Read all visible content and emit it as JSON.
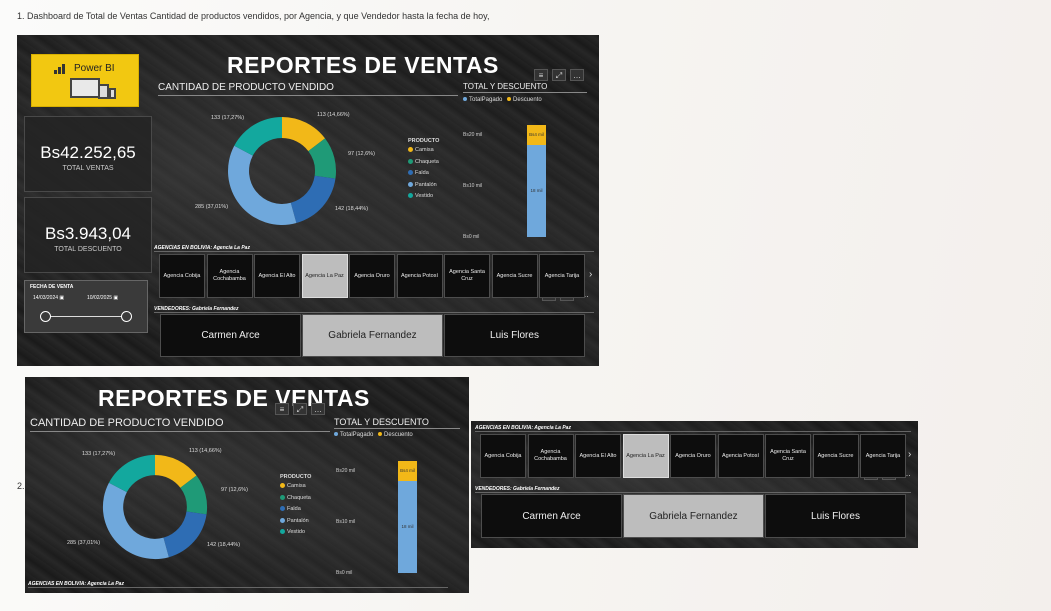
{
  "caption_1": "1. Dashboard de Total de Ventas Cantidad de productos vendidos, por Agencia, y que Vendedor hasta la fecha de hoy,",
  "caption_2": "2.",
  "logo": {
    "text": "Power BI"
  },
  "title": "REPORTES DE VENTAS",
  "kpis": {
    "total_ventas": {
      "value": "Bs42.252,65",
      "label": "TOTAL VENTAS"
    },
    "total_descuento": {
      "value": "Bs3.943,04",
      "label": "TOTAL DESCUENTO"
    }
  },
  "date_filter": {
    "title": "FECHA DE VENTA",
    "start": "14/03/2024",
    "end": "10/02/2025",
    "range": [
      0.0,
      1.0
    ]
  },
  "colors": {
    "camisa": "#f2b818",
    "chaqueta": "#1f9a77",
    "falda": "#2e6db4",
    "pantalon": "#6fa8dc",
    "vestido": "#13a89e",
    "selected_tile": "#bdbdbd"
  },
  "donut": {
    "title": "CANTIDAD DE PRODUCTO VENDIDO",
    "legend_title": "PRODUCTO",
    "labels": [
      "113 (14,66%)",
      "97 (12,6%)",
      "142 (18,44%)",
      "285 (37,01%)",
      "133 (17,27%)"
    ]
  },
  "bar": {
    "title": "TOTAL Y DESCUENTO",
    "legend": [
      "TotalPagado",
      "Descuento"
    ],
    "ticks": [
      "Bs20 mil",
      "Bs10 mil",
      "Bs0 mil"
    ],
    "seg_labels": [
      "Bs4 mil",
      "18 mil"
    ]
  },
  "agencies": {
    "title": "AGENCIAS EN BOLIVIA: Agencia La Paz",
    "items": [
      "Agencia Cobija",
      "Agencia Cochabamba",
      "Agencia El Alto",
      "Agencia La Paz",
      "Agencia Oruro",
      "Agencia Potosí",
      "Agencia Santa Cruz",
      "Agencia Sucre",
      "Agencia Tarija"
    ],
    "selected": 3
  },
  "sellers": {
    "title": "VENDEDORES: Gabriela Fernandez",
    "items": [
      "Carmen Arce",
      "Gabriela Fernandez",
      "Luis Flores"
    ],
    "selected": 1
  },
  "chart_data": [
    {
      "type": "pie",
      "title": "CANTIDAD DE PRODUCTO VENDIDO",
      "legend_title": "PRODUCTO",
      "categories": [
        "Camisa",
        "Chaqueta",
        "Falda",
        "Pantalón",
        "Vestido"
      ],
      "values": [
        113,
        97,
        142,
        285,
        133
      ],
      "percent_labels": [
        "14,66%",
        "12,6%",
        "18,44%",
        "37,01%",
        "17,27%"
      ]
    },
    {
      "type": "bar",
      "title": "TOTAL Y DESCUENTO",
      "stacked": true,
      "series": [
        {
          "name": "TotalPagado",
          "values": [
            18
          ]
        },
        {
          "name": "Descuento",
          "values": [
            4
          ]
        }
      ],
      "unit": "mil Bs",
      "ylim": [
        0,
        22
      ]
    }
  ]
}
